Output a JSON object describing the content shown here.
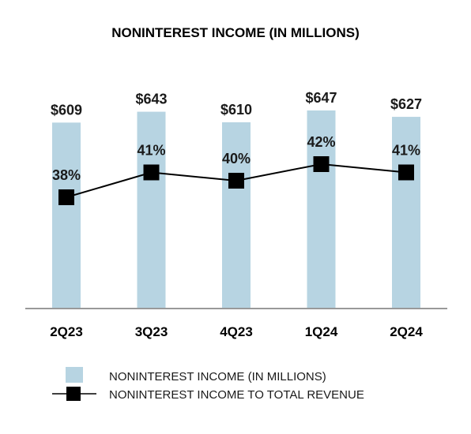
{
  "chart_data": {
    "type": "bar",
    "title": "NONINTEREST INCOME (IN MILLIONS)",
    "categories": [
      "2Q23",
      "3Q23",
      "4Q23",
      "1Q24",
      "2Q24"
    ],
    "series": [
      {
        "name": "NONINTEREST INCOME (IN MILLIONS)",
        "type": "bar",
        "values": [
          609,
          643,
          610,
          647,
          627
        ],
        "labels": [
          "$609",
          "$643",
          "$610",
          "$647",
          "$627"
        ],
        "color": "#b7d4e2"
      },
      {
        "name": "NONINTEREST INCOME TO TOTAL REVENUE",
        "type": "line",
        "values": [
          38,
          41,
          40,
          42,
          41
        ],
        "labels": [
          "38%",
          "41%",
          "40%",
          "42%",
          "41%"
        ],
        "color": "#000000",
        "marker": "square"
      }
    ],
    "legend_position": "bottom",
    "grid": false
  }
}
